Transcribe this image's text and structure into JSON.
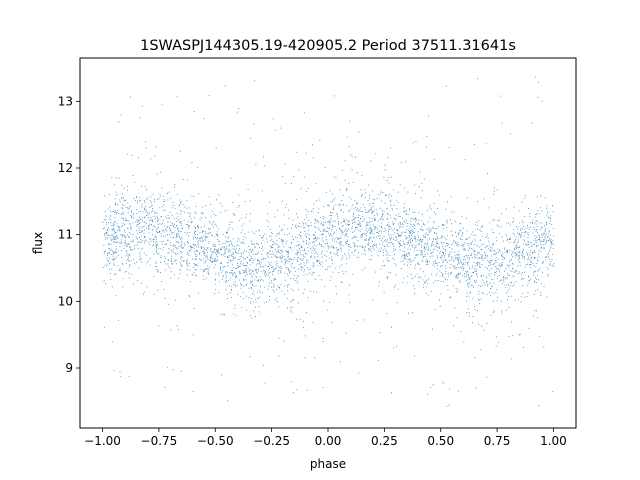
{
  "chart_data": {
    "type": "scatter",
    "title": "1SWASPJ144305.19-420905.2 Period 37511.31641s",
    "xlabel": "phase",
    "ylabel": "flux",
    "xlim": [
      -1.1,
      1.1
    ],
    "ylim": [
      8.1,
      13.65
    ],
    "x_ticks": [
      -1.0,
      -0.75,
      -0.5,
      -0.25,
      0.0,
      0.25,
      0.5,
      0.75,
      1.0
    ],
    "x_tick_labels": [
      "−1.00",
      "−0.75",
      "−0.50",
      "−0.25",
      "0.00",
      "0.25",
      "0.50",
      "0.75",
      "1.00"
    ],
    "y_ticks": [
      9,
      10,
      11,
      12,
      13
    ],
    "y_tick_labels": [
      "9",
      "10",
      "11",
      "12",
      "13"
    ],
    "grid": false,
    "legend": "none",
    "point_color": "#1f77b4",
    "series": [
      {
        "description_model": "phase-folded light curve, points spread across phase -1 to 1",
        "x_range": [
          -1.0,
          1.0
        ],
        "mean_flux_curve": {
          "x": [
            -1.0,
            -0.9,
            -0.8,
            -0.7,
            -0.6,
            -0.5,
            -0.4,
            -0.3,
            -0.2,
            -0.1,
            0.0,
            0.1,
            0.2,
            0.3,
            0.4,
            0.5,
            0.6,
            0.7,
            0.8,
            0.9,
            1.0
          ],
          "y": [
            10.95,
            11.05,
            11.1,
            11.05,
            10.9,
            10.75,
            10.6,
            10.55,
            10.62,
            10.8,
            10.95,
            11.05,
            11.1,
            11.05,
            10.9,
            10.72,
            10.58,
            10.55,
            10.62,
            10.8,
            10.95
          ]
        },
        "core_scatter": 0.3,
        "outlier_flux_range": [
          8.4,
          13.4
        ]
      }
    ]
  }
}
